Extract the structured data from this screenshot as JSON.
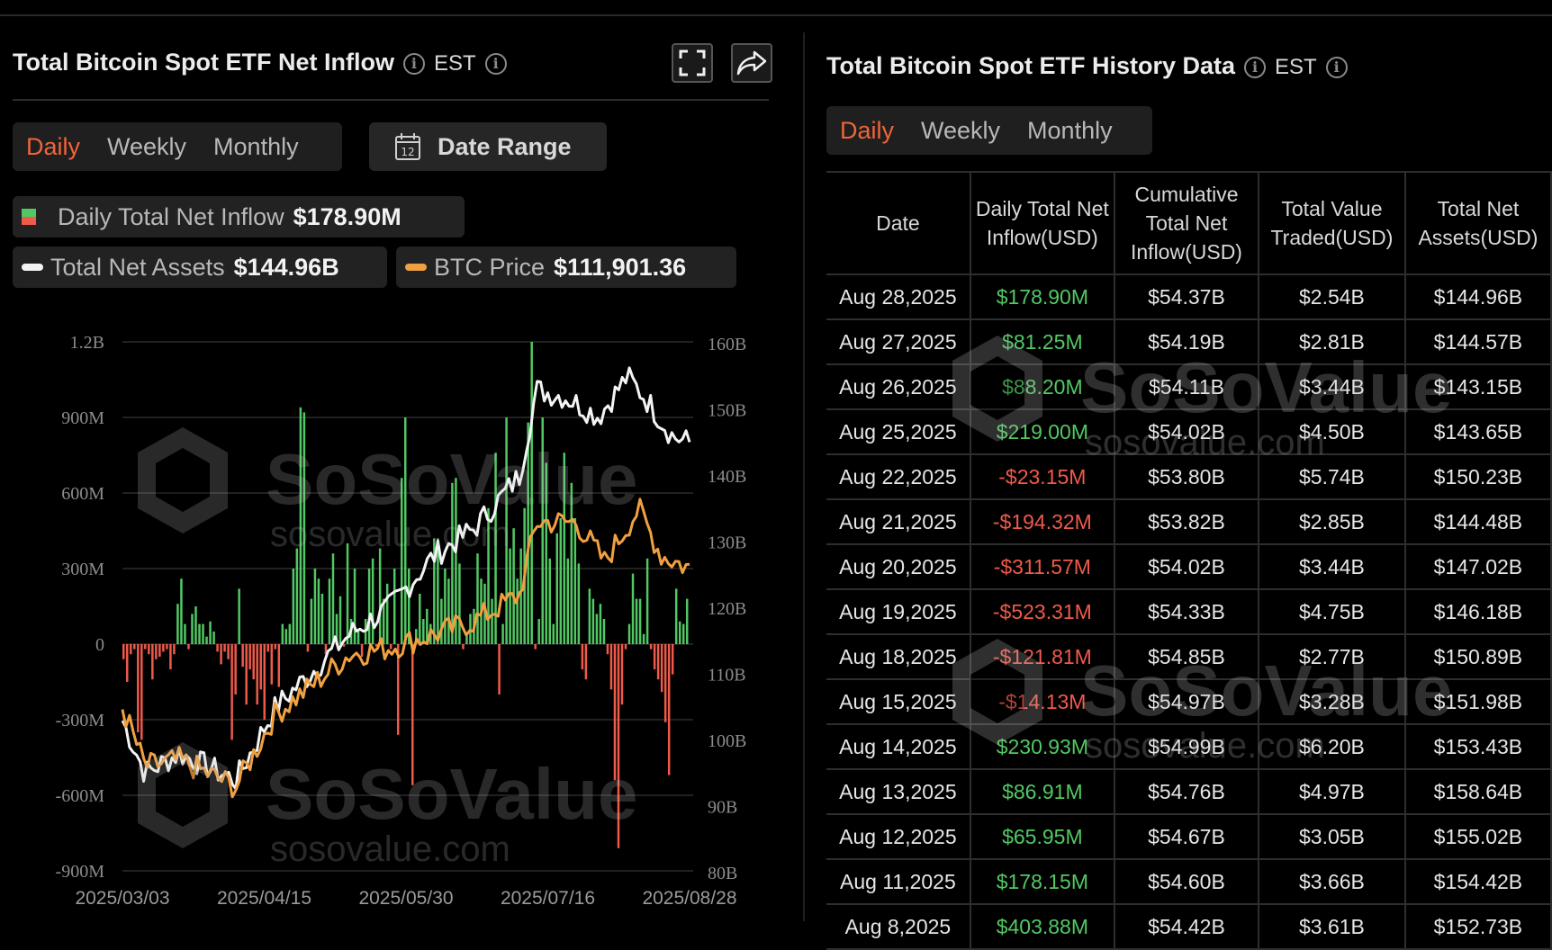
{
  "left_panel": {
    "title": "Total Bitcoin Spot ETF Net Inflow",
    "timezone": "EST",
    "tabs": [
      "Daily",
      "Weekly",
      "Monthly"
    ],
    "active_tab": "Daily",
    "date_range_label": "Date Range",
    "calendar_day": "12",
    "legend": {
      "inflow_label": "Daily Total Net Inflow",
      "inflow_value": "$178.90M",
      "assets_label": "Total Net Assets",
      "assets_value": "$144.96B",
      "btc_label": "BTC Price",
      "btc_value": "$111,901.36"
    }
  },
  "right_panel": {
    "title": "Total Bitcoin Spot ETF History Data",
    "timezone": "EST",
    "tabs": [
      "Daily",
      "Weekly",
      "Monthly"
    ],
    "active_tab": "Daily",
    "columns": [
      "Date",
      "Daily Total Net Inflow(USD)",
      "Cumulative Total Net Inflow(USD)",
      "Total Value Traded(USD)",
      "Total Net Assets(USD)"
    ],
    "rows": [
      [
        "Aug 28,2025",
        "$178.90M",
        "$54.37B",
        "$2.54B",
        "$144.96B"
      ],
      [
        "Aug 27,2025",
        "$81.25M",
        "$54.19B",
        "$2.81B",
        "$144.57B"
      ],
      [
        "Aug 26,2025",
        "$88.20M",
        "$54.11B",
        "$3.44B",
        "$143.15B"
      ],
      [
        "Aug 25,2025",
        "$219.00M",
        "$54.02B",
        "$4.50B",
        "$143.65B"
      ],
      [
        "Aug 22,2025",
        "-$23.15M",
        "$53.80B",
        "$5.74B",
        "$150.23B"
      ],
      [
        "Aug 21,2025",
        "-$194.32M",
        "$53.82B",
        "$2.85B",
        "$144.48B"
      ],
      [
        "Aug 20,2025",
        "-$311.57M",
        "$54.02B",
        "$3.44B",
        "$147.02B"
      ],
      [
        "Aug 19,2025",
        "-$523.31M",
        "$54.33B",
        "$4.75B",
        "$146.18B"
      ],
      [
        "Aug 18,2025",
        "-$121.81M",
        "$54.85B",
        "$2.77B",
        "$150.89B"
      ],
      [
        "Aug 15,2025",
        "-$14.13M",
        "$54.97B",
        "$3.28B",
        "$151.98B"
      ],
      [
        "Aug 14,2025",
        "$230.93M",
        "$54.99B",
        "$6.20B",
        "$153.43B"
      ],
      [
        "Aug 13,2025",
        "$86.91M",
        "$54.76B",
        "$4.97B",
        "$158.64B"
      ],
      [
        "Aug 12,2025",
        "$65.95M",
        "$54.67B",
        "$3.05B",
        "$155.02B"
      ],
      [
        "Aug 11,2025",
        "$178.15M",
        "$54.60B",
        "$3.66B",
        "$154.42B"
      ],
      [
        "Aug 8,2025",
        "$403.88M",
        "$54.42B",
        "$3.61B",
        "$152.73B"
      ]
    ]
  },
  "watermark": {
    "brand": "SoSoValue",
    "url": "sosovalue.com"
  },
  "colors": {
    "positive": "#52c864",
    "negative": "#ef5a4a",
    "assets_line": "#f4f4f4",
    "btc_line": "#f0a040",
    "accent": "#f0643a"
  },
  "chart_data": {
    "type": "bar",
    "x_ticks": [
      "2025/03/03",
      "2025/04/15",
      "2025/05/30",
      "2025/07/16",
      "2025/08/28"
    ],
    "y_left_ticks": [
      "1.2B",
      "900M",
      "600M",
      "300M",
      "0",
      "-300M",
      "-600M",
      "-900M"
    ],
    "y_right_ticks": [
      "160B",
      "150B",
      "140B",
      "130B",
      "120B",
      "110B",
      "100B",
      "90B",
      "80B"
    ],
    "ylim_left": [
      -900000000,
      1200000000
    ],
    "ylim_right": [
      80000000000,
      160000000000
    ],
    "grid": true,
    "series": [
      {
        "name": "Daily Total Net Inflow",
        "kind": "bar",
        "axis": "left",
        "values_millions": [
          -60,
          -150,
          -40,
          -20,
          -350,
          -380,
          -20,
          -40,
          -140,
          -60,
          -50,
          -30,
          -20,
          -100,
          -40,
          160,
          260,
          80,
          -20,
          120,
          150,
          80,
          80,
          30,
          90,
          50,
          -30,
          -80,
          -30,
          -60,
          -380,
          -200,
          220,
          -90,
          -240,
          -100,
          -140,
          -240,
          -180,
          -300,
          -30,
          -160,
          -20,
          -170,
          80,
          60,
          80,
          300,
          380,
          940,
          920,
          -30,
          180,
          300,
          260,
          200,
          -40,
          260,
          360,
          120,
          190,
          -10,
          400,
          100,
          300,
          60,
          -50,
          100,
          300,
          340,
          -10,
          380,
          180,
          240,
          -20,
          300,
          -360,
          660,
          900,
          300,
          -560,
          60,
          200,
          100,
          140,
          80,
          420,
          420,
          180,
          300,
          260,
          640,
          660,
          320,
          -20,
          40,
          120,
          140,
          360,
          260,
          240,
          540,
          180,
          760,
          -200,
          80,
          900,
          380,
          460,
          260,
          380,
          540,
          880,
          1200,
          -20,
          100,
          900,
          720,
          340,
          80,
          440,
          500,
          760,
          340,
          640,
          500,
          320,
          -100,
          -140,
          220,
          180,
          120,
          160,
          100,
          -40,
          -180,
          -540,
          -810,
          -240,
          -20,
          80,
          280,
          180,
          180,
          40,
          340,
          -20,
          -100,
          -140,
          -190,
          -310,
          -520,
          -120,
          220,
          90,
          80,
          180
        ],
        "last_value": "$178.90M"
      },
      {
        "name": "Total Net Assets",
        "kind": "line",
        "axis": "right",
        "first_approx_billions": 105,
        "last_value": "$144.96B"
      },
      {
        "name": "BTC Price",
        "kind": "line",
        "axis": "right",
        "last_value": "$111,901.36"
      }
    ]
  }
}
